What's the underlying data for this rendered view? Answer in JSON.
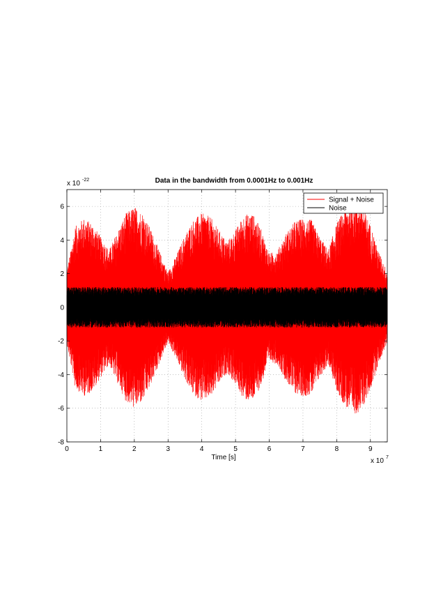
{
  "chart_data": {
    "type": "line",
    "title": "Data in the bandwidth from 0.0001Hz to 0.001Hz",
    "xlabel": "Time [s]",
    "ylabel": "",
    "x_exponent": {
      "base": "x 10",
      "power": "7"
    },
    "y_exponent": {
      "base": "x 10",
      "power": "-22"
    },
    "xlim": [
      0,
      9.5
    ],
    "ylim": [
      -8,
      7
    ],
    "x_ticks": [
      "0",
      "1",
      "2",
      "3",
      "4",
      "5",
      "6",
      "7",
      "8",
      "9"
    ],
    "y_ticks": [
      "6",
      "4",
      "2",
      "0",
      "-2",
      "-4",
      "-6",
      "-8"
    ],
    "grid": true,
    "legend_position": "top-right",
    "series": [
      {
        "name": "Signal + Noise",
        "color": "#ff0000",
        "envelope_x": [
          0,
          0.25,
          0.5,
          0.75,
          1.0,
          1.25,
          1.5,
          1.75,
          2.0,
          2.25,
          2.5,
          2.75,
          3.0,
          3.25,
          3.5,
          3.75,
          4.0,
          4.25,
          4.5,
          4.75,
          5.0,
          5.25,
          5.5,
          5.75,
          6.0,
          6.25,
          6.5,
          6.75,
          7.0,
          7.25,
          7.5,
          7.75,
          8.0,
          8.25,
          8.5,
          8.75,
          9.0,
          9.25,
          9.5
        ],
        "envelope_max": [
          2.2,
          4.8,
          5.3,
          5.0,
          4.2,
          3.4,
          4.5,
          5.6,
          6.0,
          5.6,
          4.6,
          3.3,
          2.1,
          3.1,
          4.3,
          5.2,
          5.6,
          5.4,
          4.6,
          3.9,
          4.6,
          5.5,
          5.6,
          4.7,
          3.2,
          3.4,
          4.4,
          5.1,
          5.3,
          5.2,
          4.2,
          3.4,
          5.0,
          5.9,
          6.4,
          6.1,
          4.9,
          3.3,
          2.1
        ],
        "envelope_min": [
          -2.2,
          -4.8,
          -5.3,
          -5.0,
          -4.2,
          -3.4,
          -4.5,
          -5.6,
          -6.0,
          -5.6,
          -4.6,
          -3.3,
          -2.1,
          -3.1,
          -4.3,
          -5.2,
          -5.6,
          -5.4,
          -4.6,
          -3.9,
          -4.6,
          -5.5,
          -5.6,
          -4.7,
          -3.2,
          -3.4,
          -4.4,
          -5.1,
          -5.3,
          -5.2,
          -4.2,
          -3.4,
          -5.0,
          -5.9,
          -6.4,
          -6.1,
          -4.9,
          -3.3,
          -2.1
        ]
      },
      {
        "name": "Noise",
        "color": "#000000",
        "envelope_x": [
          0,
          9.5
        ],
        "envelope_max": [
          1.2,
          1.2
        ],
        "envelope_min": [
          -1.2,
          -1.2
        ]
      }
    ]
  }
}
